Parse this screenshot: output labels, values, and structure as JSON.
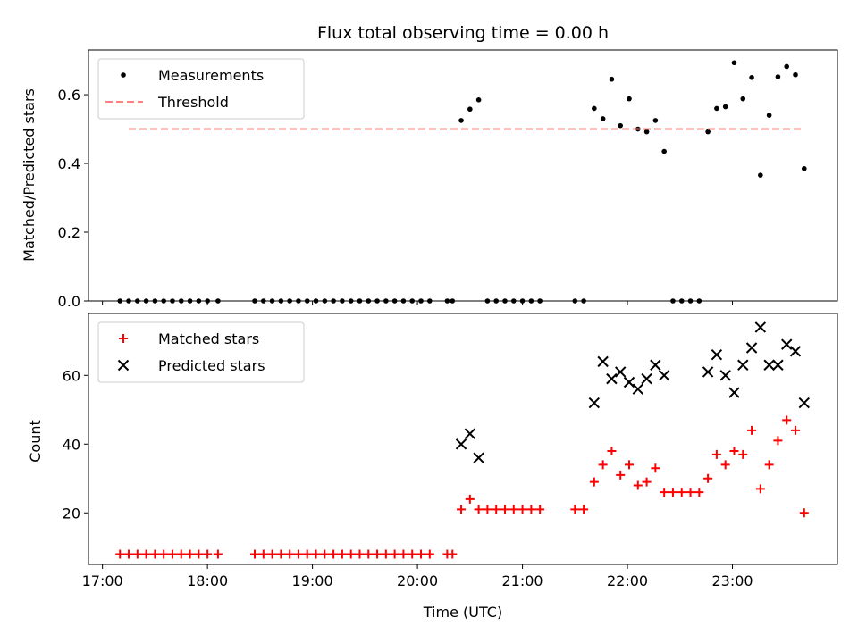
{
  "title": "Flux total observing time = 0.00 h",
  "xlabel": "Time (UTC)",
  "colors": {
    "measurements": "#000000",
    "threshold": "#ff8080",
    "matched": "#ff0000",
    "predicted": "#000000"
  },
  "chart_data": [
    {
      "type": "scatter",
      "title": "Flux total observing time = 0.00 h",
      "xlabel": "",
      "ylabel": "Matched/Predicted stars",
      "xlim": [
        "16:52",
        "24:00"
      ],
      "ylim": [
        0,
        0.73
      ],
      "x_ticks": [
        "17:00",
        "18:00",
        "19:00",
        "20:00",
        "21:00",
        "22:00",
        "23:00"
      ],
      "x_tick_labels_shown": false,
      "y_ticks": [
        "0.0",
        "0.2",
        "0.4",
        "0.6"
      ],
      "legend": {
        "placement": "top-left",
        "entries": [
          "Measurements",
          "Threshold"
        ]
      },
      "series": [
        {
          "name": "Measurements",
          "kind": "scatter",
          "marker": "dot",
          "points": [
            [
              "17:10",
              0
            ],
            [
              "17:15",
              0
            ],
            [
              "17:20",
              0
            ],
            [
              "17:25",
              0
            ],
            [
              "17:30",
              0
            ],
            [
              "17:35",
              0
            ],
            [
              "17:40",
              0
            ],
            [
              "17:45",
              0
            ],
            [
              "17:50",
              0
            ],
            [
              "17:55",
              0
            ],
            [
              "18:00",
              0
            ],
            [
              "18:06",
              0
            ],
            [
              "18:27",
              0
            ],
            [
              "18:32",
              0
            ],
            [
              "18:37",
              0
            ],
            [
              "18:42",
              0
            ],
            [
              "18:47",
              0
            ],
            [
              "18:52",
              0
            ],
            [
              "18:57",
              0
            ],
            [
              "19:02",
              0
            ],
            [
              "19:07",
              0
            ],
            [
              "19:12",
              0
            ],
            [
              "19:17",
              0
            ],
            [
              "19:22",
              0
            ],
            [
              "19:27",
              0
            ],
            [
              "19:32",
              0
            ],
            [
              "19:37",
              0
            ],
            [
              "19:42",
              0
            ],
            [
              "19:47",
              0
            ],
            [
              "19:52",
              0
            ],
            [
              "19:57",
              0
            ],
            [
              "20:02",
              0
            ],
            [
              "20:07",
              0
            ],
            [
              "20:17",
              0
            ],
            [
              "20:20",
              0
            ],
            [
              "20:25",
              0.525
            ],
            [
              "20:30",
              0.558
            ],
            [
              "20:35",
              0.585
            ],
            [
              "20:40",
              0
            ],
            [
              "20:45",
              0
            ],
            [
              "20:50",
              0
            ],
            [
              "20:55",
              0
            ],
            [
              "21:00",
              0
            ],
            [
              "21:05",
              0
            ],
            [
              "21:10",
              0
            ],
            [
              "21:30",
              0
            ],
            [
              "21:35",
              0
            ],
            [
              "21:41",
              0.56
            ],
            [
              "21:46",
              0.53
            ],
            [
              "21:51",
              0.645
            ],
            [
              "21:56",
              0.51
            ],
            [
              "22:01",
              0.588
            ],
            [
              "22:06",
              0.5
            ],
            [
              "22:11",
              0.492
            ],
            [
              "22:16",
              0.525
            ],
            [
              "22:21",
              0.435
            ],
            [
              "22:26",
              0
            ],
            [
              "22:31",
              0
            ],
            [
              "22:36",
              0
            ],
            [
              "22:41",
              0
            ],
            [
              "22:46",
              0.492
            ],
            [
              "22:51",
              0.56
            ],
            [
              "22:56",
              0.565
            ],
            [
              "23:01",
              0.693
            ],
            [
              "23:06",
              0.588
            ],
            [
              "23:11",
              0.65
            ],
            [
              "23:16",
              0.366
            ],
            [
              "23:21",
              0.54
            ],
            [
              "23:26",
              0.652
            ],
            [
              "23:31",
              0.682
            ],
            [
              "23:36",
              0.658
            ],
            [
              "23:41",
              0.385
            ]
          ]
        },
        {
          "name": "Threshold",
          "kind": "line",
          "style": "dashed",
          "points": [
            [
              "17:15",
              0.5
            ],
            [
              "23:40",
              0.5
            ]
          ]
        }
      ]
    },
    {
      "type": "scatter",
      "title": "",
      "xlabel": "Time (UTC)",
      "ylabel": "Count",
      "xlim": [
        "16:52",
        "24:00"
      ],
      "ylim": [
        5,
        78
      ],
      "x_ticks": [
        "17:00",
        "18:00",
        "19:00",
        "20:00",
        "21:00",
        "22:00",
        "23:00"
      ],
      "y_ticks": [
        "20",
        "40",
        "60"
      ],
      "legend": {
        "placement": "top-left",
        "entries": [
          "Matched stars",
          "Predicted stars"
        ]
      },
      "series": [
        {
          "name": "Matched stars",
          "marker": "plus",
          "points": [
            [
              "17:10",
              8
            ],
            [
              "17:15",
              8
            ],
            [
              "17:20",
              8
            ],
            [
              "17:25",
              8
            ],
            [
              "17:30",
              8
            ],
            [
              "17:35",
              8
            ],
            [
              "17:40",
              8
            ],
            [
              "17:45",
              8
            ],
            [
              "17:50",
              8
            ],
            [
              "17:55",
              8
            ],
            [
              "18:00",
              8
            ],
            [
              "18:06",
              8
            ],
            [
              "18:27",
              8
            ],
            [
              "18:32",
              8
            ],
            [
              "18:37",
              8
            ],
            [
              "18:42",
              8
            ],
            [
              "18:47",
              8
            ],
            [
              "18:52",
              8
            ],
            [
              "18:57",
              8
            ],
            [
              "19:02",
              8
            ],
            [
              "19:07",
              8
            ],
            [
              "19:12",
              8
            ],
            [
              "19:17",
              8
            ],
            [
              "19:22",
              8
            ],
            [
              "19:27",
              8
            ],
            [
              "19:32",
              8
            ],
            [
              "19:37",
              8
            ],
            [
              "19:42",
              8
            ],
            [
              "19:47",
              8
            ],
            [
              "19:52",
              8
            ],
            [
              "19:57",
              8
            ],
            [
              "20:02",
              8
            ],
            [
              "20:07",
              8
            ],
            [
              "20:17",
              8
            ],
            [
              "20:20",
              8
            ],
            [
              "20:25",
              21
            ],
            [
              "20:30",
              24
            ],
            [
              "20:35",
              21
            ],
            [
              "20:40",
              21
            ],
            [
              "20:45",
              21
            ],
            [
              "20:50",
              21
            ],
            [
              "20:55",
              21
            ],
            [
              "21:00",
              21
            ],
            [
              "21:05",
              21
            ],
            [
              "21:10",
              21
            ],
            [
              "21:30",
              21
            ],
            [
              "21:35",
              21
            ],
            [
              "21:41",
              29
            ],
            [
              "21:46",
              34
            ],
            [
              "21:51",
              38
            ],
            [
              "21:56",
              31
            ],
            [
              "22:01",
              34
            ],
            [
              "22:06",
              28
            ],
            [
              "22:11",
              29
            ],
            [
              "22:16",
              33
            ],
            [
              "22:21",
              26
            ],
            [
              "22:26",
              26
            ],
            [
              "22:31",
              26
            ],
            [
              "22:36",
              26
            ],
            [
              "22:41",
              26
            ],
            [
              "22:46",
              30
            ],
            [
              "22:51",
              37
            ],
            [
              "22:56",
              34
            ],
            [
              "23:01",
              38
            ],
            [
              "23:06",
              37
            ],
            [
              "23:11",
              44
            ],
            [
              "23:16",
              27
            ],
            [
              "23:21",
              34
            ],
            [
              "23:26",
              41
            ],
            [
              "23:31",
              47
            ],
            [
              "23:36",
              44
            ],
            [
              "23:41",
              20
            ]
          ]
        },
        {
          "name": "Predicted stars",
          "marker": "x",
          "points": [
            [
              "20:25",
              40
            ],
            [
              "20:30",
              43
            ],
            [
              "20:35",
              36
            ],
            [
              "21:41",
              52
            ],
            [
              "21:46",
              64
            ],
            [
              "21:51",
              59
            ],
            [
              "21:56",
              61
            ],
            [
              "22:01",
              58
            ],
            [
              "22:06",
              56
            ],
            [
              "22:11",
              59
            ],
            [
              "22:16",
              63
            ],
            [
              "22:21",
              60
            ],
            [
              "22:46",
              61
            ],
            [
              "22:51",
              66
            ],
            [
              "22:56",
              60
            ],
            [
              "23:01",
              55
            ],
            [
              "23:06",
              63
            ],
            [
              "23:11",
              68
            ],
            [
              "23:16",
              74
            ],
            [
              "23:21",
              63
            ],
            [
              "23:26",
              63
            ],
            [
              "23:31",
              69
            ],
            [
              "23:36",
              67
            ],
            [
              "23:41",
              52
            ]
          ]
        }
      ]
    }
  ]
}
